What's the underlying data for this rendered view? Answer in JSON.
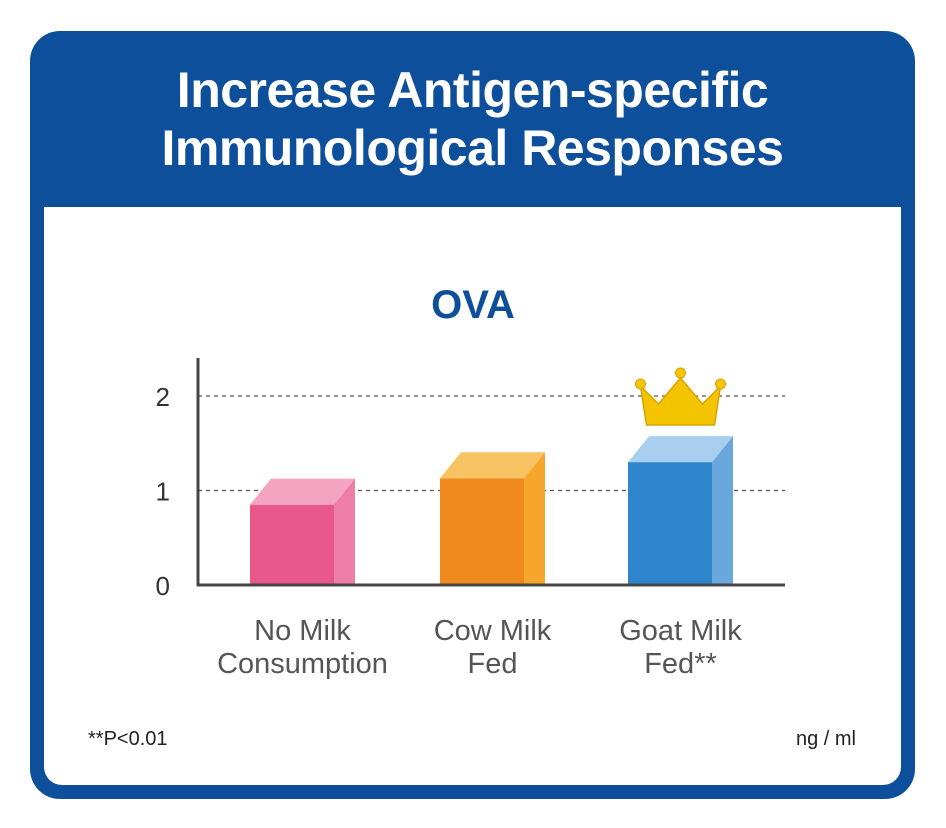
{
  "header": {
    "title_line1": "Increase Antigen-specific",
    "title_line2": "Immunological Responses"
  },
  "colors": {
    "frame": "#0e4f9c",
    "chart_title": "#0e4f9c",
    "bar_pink": "#e8588a",
    "bar_orange": "#f08a1c",
    "bar_blue": "#2f86cd",
    "crown": "#f5c400"
  },
  "chart_data": {
    "type": "bar",
    "title": "OVA",
    "categories": [
      [
        "No Milk",
        "Consumption"
      ],
      [
        "Cow Milk",
        "Fed"
      ],
      [
        "Goat Milk",
        "Fed**"
      ]
    ],
    "values": [
      0.85,
      1.13,
      1.3
    ],
    "ylim": [
      0,
      2
    ],
    "yticks": [
      "0",
      "1",
      "2"
    ],
    "grid": "dashed horizontal at 1 and 2",
    "highlight": {
      "category_index": 2,
      "icon": "crown-icon"
    }
  },
  "footer": {
    "footnote": "**P<0.01",
    "units": "ng / ml"
  }
}
